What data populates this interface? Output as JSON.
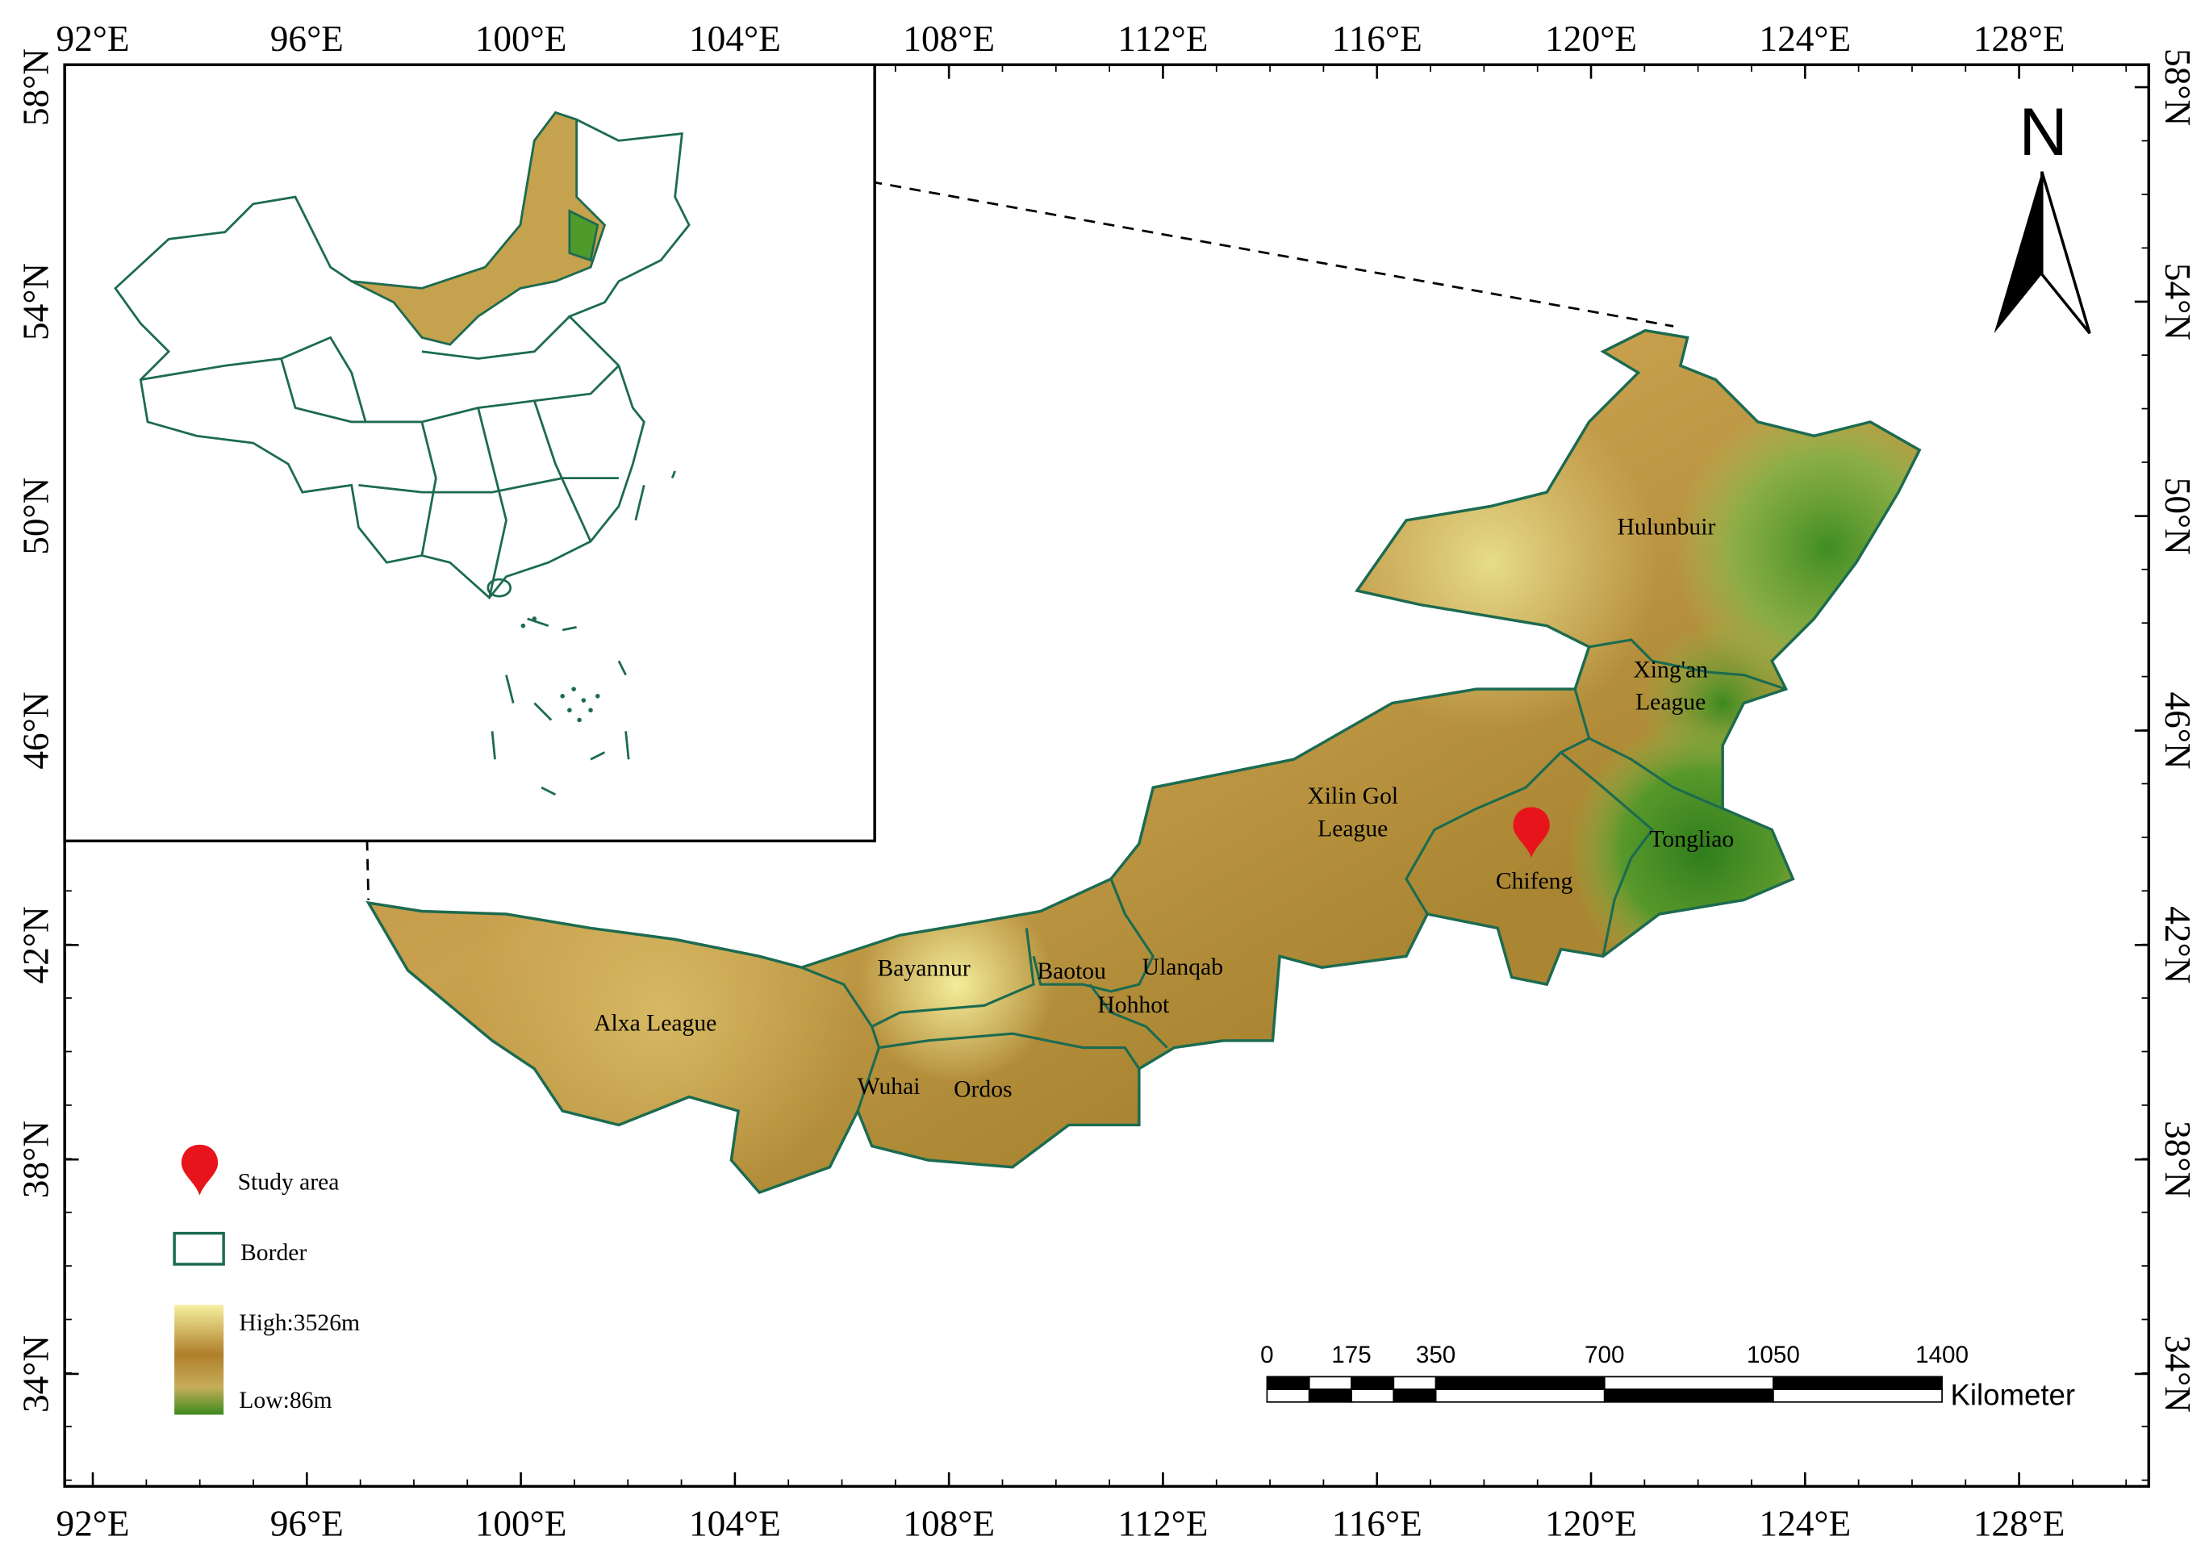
{
  "frame": {
    "longitudes": [
      "92°E",
      "96°E",
      "100°E",
      "104°E",
      "108°E",
      "112°E",
      "116°E",
      "120°E",
      "124°E",
      "128°E"
    ],
    "latitudes": [
      "58°N",
      "54°N",
      "50°N",
      "46°N",
      "42°N",
      "38°N",
      "34°N"
    ]
  },
  "north_arrow": "N",
  "regions": [
    {
      "lines": [
        "Hulunbuir"
      ]
    },
    {
      "lines": [
        "Xing'an",
        "League"
      ]
    },
    {
      "lines": [
        "Xilin Gol",
        "League"
      ]
    },
    {
      "lines": [
        "Tongliao"
      ]
    },
    {
      "lines": [
        "Chifeng"
      ]
    },
    {
      "lines": [
        "Bayannur"
      ]
    },
    {
      "lines": [
        "Baotou"
      ]
    },
    {
      "lines": [
        "Ulanqab"
      ]
    },
    {
      "lines": [
        "Hohhot"
      ]
    },
    {
      "lines": [
        "Alxa League"
      ]
    },
    {
      "lines": [
        "Wuhai"
      ]
    },
    {
      "lines": [
        "Ordos"
      ]
    }
  ],
  "legend": {
    "study_area": "Study area",
    "border": "Border",
    "high": "High:3526m",
    "low": "Low:86m"
  },
  "scale_bar": {
    "ticks": [
      0,
      175,
      350,
      700,
      1050,
      1400
    ],
    "unit": "Kilometer"
  }
}
